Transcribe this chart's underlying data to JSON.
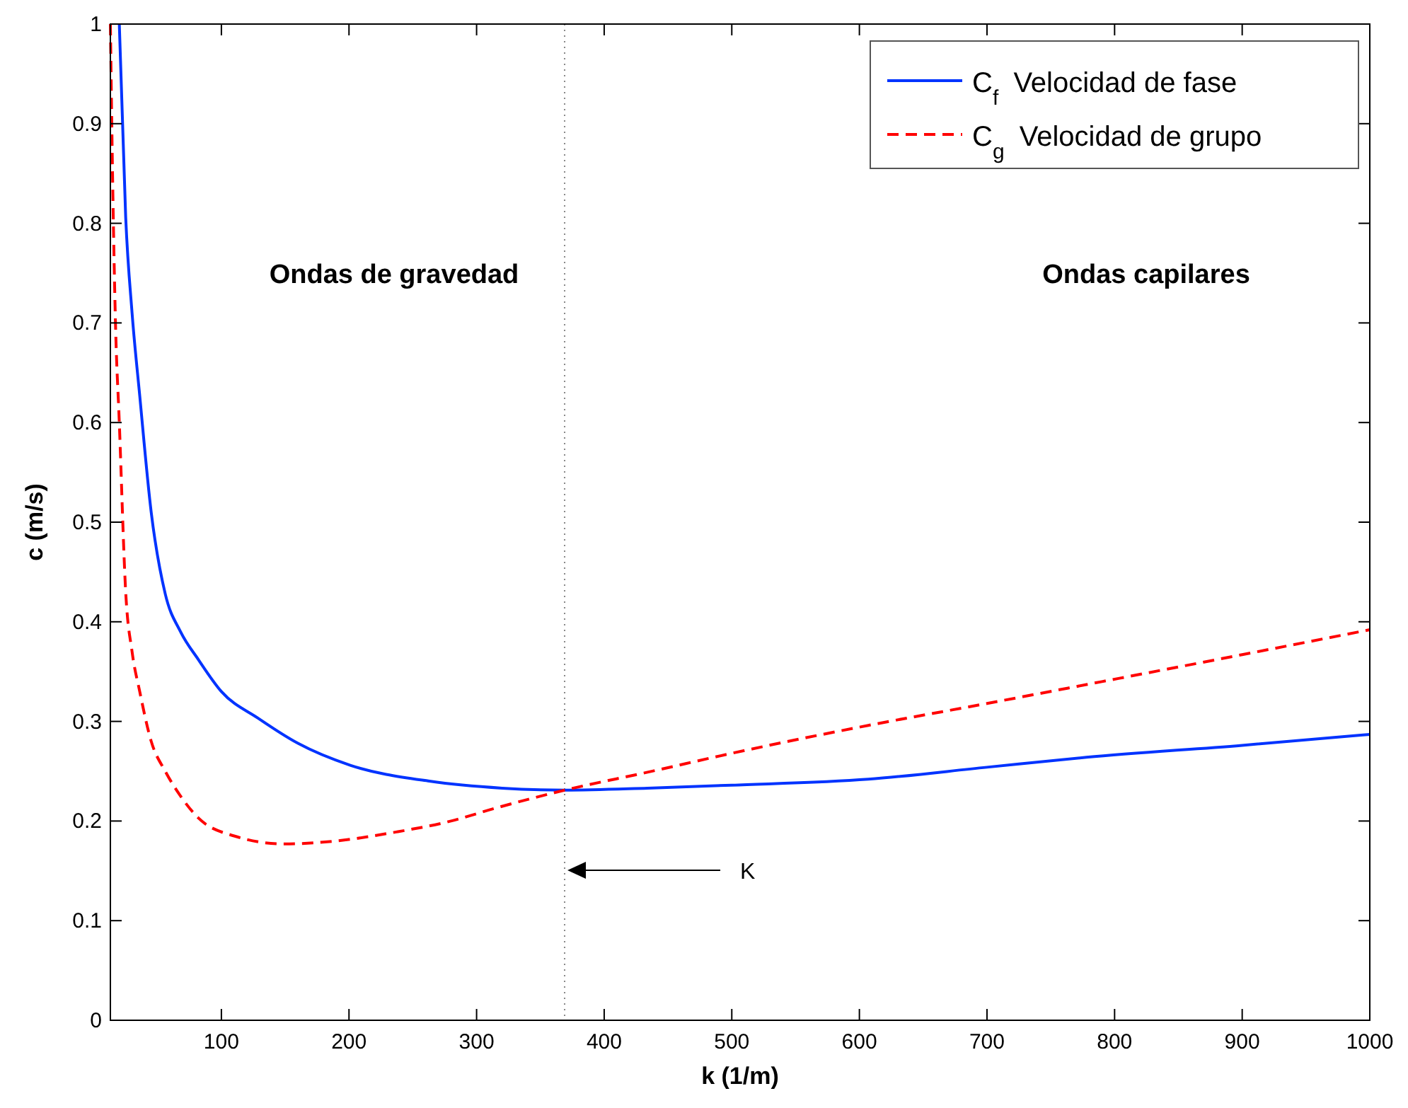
{
  "chart_data": {
    "type": "line",
    "xlabel": "k (1/m)",
    "ylabel": "c (m/s)",
    "xlim": [
      13,
      1000
    ],
    "ylim": [
      0,
      1
    ],
    "xticks": [
      100,
      200,
      300,
      400,
      500,
      600,
      700,
      800,
      900,
      1000
    ],
    "yticks": [
      0,
      0.1,
      0.2,
      0.3,
      0.4,
      0.5,
      0.6,
      0.7,
      0.8,
      0.9,
      1
    ],
    "grid": false,
    "legend": "top right",
    "marker": "none",
    "series": [
      {
        "name": "C$_{f}$ Velocidad de fase",
        "color": "#0033ff",
        "line_style": "solid",
        "x": [
          20,
          25,
          30,
          36,
          45,
          56,
          68,
          82,
          100,
          129,
          160,
          201,
          263,
          320,
          369,
          434,
          500,
          607,
          700,
          778,
          900,
          1000
        ],
        "values": [
          1.0,
          0.806,
          0.71,
          0.627,
          0.51,
          0.428,
          0.39,
          0.362,
          0.33,
          0.303,
          0.278,
          0.256,
          0.24,
          0.233,
          0.231,
          0.233,
          0.236,
          0.242,
          0.254,
          0.264,
          0.276,
          0.287
        ]
      },
      {
        "name": "C$_{g}$ Velocidad de grupo",
        "color": "#ff0000",
        "line_style": "dashed",
        "x": [
          13,
          15,
          17,
          20,
          25,
          30,
          36,
          45,
          56,
          68,
          82,
          110,
          149,
          190,
          237,
          280,
          315,
          369,
          434,
          500,
          607,
          700,
          778,
          900,
          1000
        ],
        "values": [
          1.0,
          0.826,
          0.7,
          0.6,
          0.43,
          0.37,
          0.33,
          0.28,
          0.25,
          0.225,
          0.203,
          0.185,
          0.177,
          0.18,
          0.189,
          0.2,
          0.213,
          0.231,
          0.249,
          0.268,
          0.296,
          0.318,
          0.337,
          0.367,
          0.392
        ]
      }
    ],
    "ref_lines": [
      {
        "axis": "x",
        "value": 369,
        "color": "#888888",
        "line_style": "dotted"
      }
    ],
    "annotations": [
      "Ondas de gravedad",
      "Ondas capilares",
      "K"
    ]
  }
}
